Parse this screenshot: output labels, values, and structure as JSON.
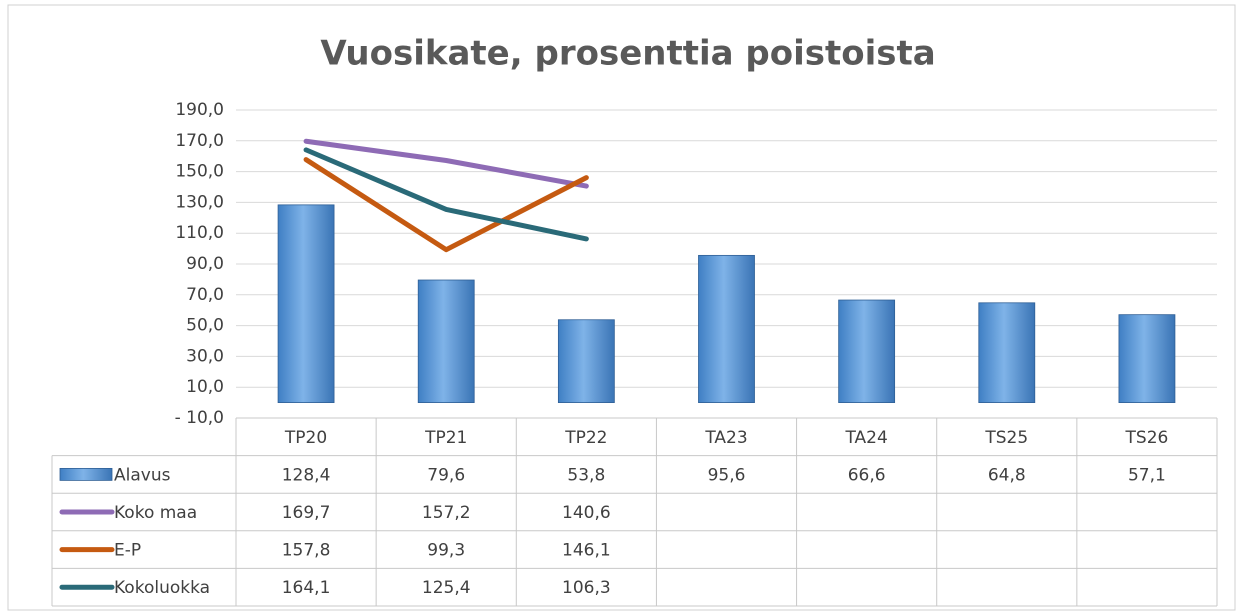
{
  "chart_data": {
    "type": "bar",
    "title": "Vuosikate, prosenttia poistoista",
    "categories": [
      "TP20",
      "TP21",
      "TP22",
      "TA23",
      "TA24",
      "TS25",
      "TS26"
    ],
    "series": [
      {
        "name": "Alavus",
        "type": "bar",
        "color": "#5b9bd5",
        "values": [
          128.4,
          79.6,
          53.8,
          95.6,
          66.6,
          64.8,
          57.1
        ],
        "value_labels": [
          "128,4",
          "79,6",
          "53,8",
          "95,6",
          "66,6",
          "64,8",
          "57,1"
        ]
      },
      {
        "name": "Koko maa",
        "type": "line",
        "color": "#8e6bb5",
        "values": [
          169.7,
          157.2,
          140.6,
          null,
          null,
          null,
          null
        ],
        "value_labels": [
          "169,7",
          "157,2",
          "140,6",
          null,
          null,
          null,
          null
        ]
      },
      {
        "name": "E-P",
        "type": "line",
        "color": "#c55a11",
        "values": [
          157.8,
          99.3,
          146.1,
          null,
          null,
          null,
          null
        ],
        "value_labels": [
          "157,8",
          "99,3",
          "146,1",
          null,
          null,
          null,
          null
        ]
      },
      {
        "name": "Kokoluokka",
        "type": "line",
        "color": "#2a6a78",
        "values": [
          164.1,
          125.4,
          106.3,
          null,
          null,
          null,
          null
        ],
        "value_labels": [
          "164,1",
          "125,4",
          "106,3",
          null,
          null,
          null,
          null
        ]
      }
    ],
    "ylim": [
      -10,
      190
    ],
    "yticks": [
      {
        "value": -10,
        "label": "- 10,0"
      },
      {
        "value": 10,
        "label": "10,0"
      },
      {
        "value": 30,
        "label": "30,0"
      },
      {
        "value": 50,
        "label": "50,0"
      },
      {
        "value": 70,
        "label": "70,0"
      },
      {
        "value": 90,
        "label": "90,0"
      },
      {
        "value": 110,
        "label": "110,0"
      },
      {
        "value": 130,
        "label": "130,0"
      },
      {
        "value": 150,
        "label": "150,0"
      },
      {
        "value": 170,
        "label": "170,0"
      },
      {
        "value": 190,
        "label": "190,0"
      }
    ],
    "grid": true
  }
}
